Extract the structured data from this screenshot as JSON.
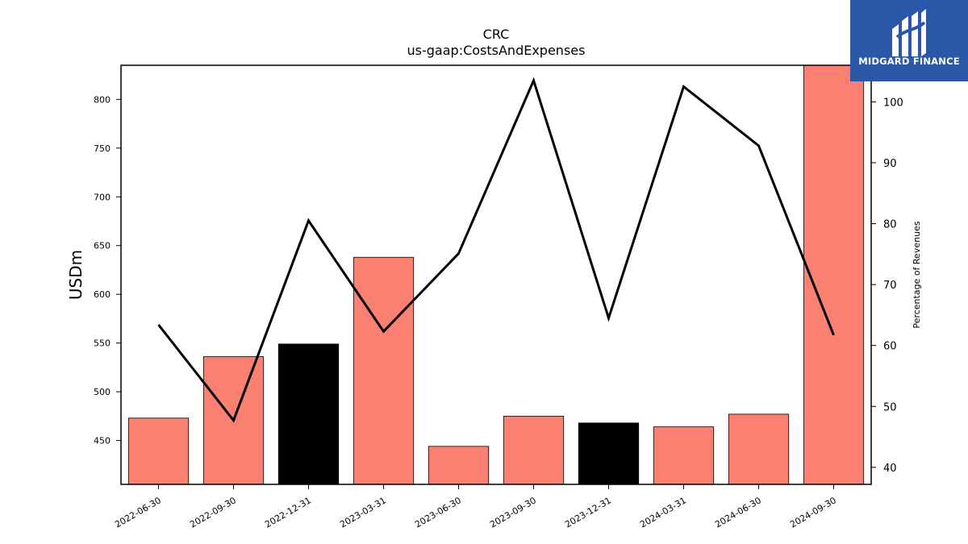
{
  "logo": {
    "text": "MIDGARD FINANCE",
    "icon": "midgard-m-logo"
  },
  "chart_data": {
    "type": "bar",
    "title": "CRC",
    "subtitle": "us-gaap:CostsAndExpenses",
    "ylabel": "USDm",
    "y2label": "Percentage of Revenues",
    "ylim": [
      405,
      835
    ],
    "y2lim": [
      37.2,
      106.0
    ],
    "yticks": [
      450,
      500,
      550,
      600,
      650,
      700,
      750,
      800
    ],
    "y2ticks": [
      40,
      50,
      60,
      70,
      80,
      90,
      100
    ],
    "categories": [
      "2022-06-30",
      "2022-09-30",
      "2022-12-31",
      "2023-03-31",
      "2023-06-30",
      "2023-09-30",
      "2023-12-31",
      "2024-03-31",
      "2024-06-30",
      "2024-09-30"
    ],
    "series": [
      {
        "kind": "bar",
        "axis": "left",
        "values": [
          473,
          536,
          549,
          638,
          444,
          475,
          468,
          464,
          477,
          835
        ],
        "colors": [
          "#fa8072",
          "#fa8072",
          "#000000",
          "#fa8072",
          "#fa8072",
          "#fa8072",
          "#000000",
          "#fa8072",
          "#fa8072",
          "#fa8072"
        ]
      },
      {
        "kind": "line",
        "axis": "right",
        "color": "#000000",
        "values": [
          63.4,
          47.7,
          80.5,
          62.3,
          75.1,
          103.5,
          64.5,
          102.5,
          92.8,
          61.7
        ]
      }
    ],
    "grid": false
  }
}
